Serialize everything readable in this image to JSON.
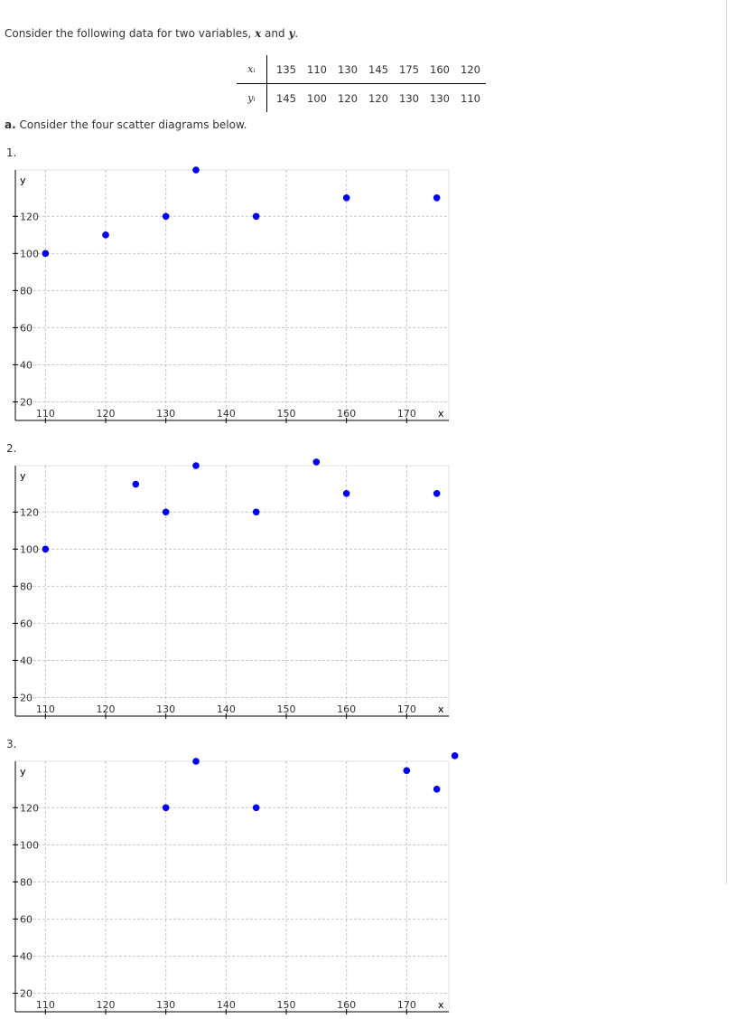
{
  "intro": {
    "text_before": "Consider the following data for two variables, ",
    "var_x": "x",
    "text_and": " and ",
    "var_y": "y",
    "text_end": "."
  },
  "table": {
    "x_label": "xᵢ",
    "y_label": "yᵢ",
    "x_values": [
      "135",
      "110",
      "130",
      "145",
      "175",
      "160",
      "120"
    ],
    "y_values": [
      "145",
      "100",
      "120",
      "120",
      "130",
      "130",
      "110"
    ]
  },
  "part_a": {
    "letter": "a.",
    "text": " Consider the four scatter diagrams below."
  },
  "chart_data": [
    {
      "number": "1.",
      "type": "scatter",
      "xlabel": "x",
      "ylabel": "y",
      "xlim": [
        105,
        177
      ],
      "ylim": [
        10,
        145
      ],
      "x_ticks": [
        "110",
        "120",
        "130",
        "140",
        "150",
        "160",
        "170"
      ],
      "y_ticks": [
        "20",
        "40",
        "60",
        "80",
        "100",
        "120"
      ],
      "grid": true,
      "points": [
        [
          110,
          100
        ],
        [
          120,
          110
        ],
        [
          130,
          120
        ],
        [
          135,
          145
        ],
        [
          145,
          120
        ],
        [
          160,
          130
        ],
        [
          175,
          130
        ]
      ]
    },
    {
      "number": "2.",
      "type": "scatter",
      "xlabel": "x",
      "ylabel": "y",
      "xlim": [
        105,
        177
      ],
      "ylim": [
        10,
        145
      ],
      "x_ticks": [
        "110",
        "120",
        "130",
        "140",
        "150",
        "160",
        "170"
      ],
      "y_ticks": [
        "20",
        "40",
        "60",
        "80",
        "100",
        "120"
      ],
      "grid": true,
      "points": [
        [
          110,
          100
        ],
        [
          125,
          135
        ],
        [
          130,
          120
        ],
        [
          135,
          145
        ],
        [
          145,
          120
        ],
        [
          155,
          147
        ],
        [
          160,
          130
        ],
        [
          175,
          130
        ]
      ]
    },
    {
      "number": "3.",
      "type": "scatter",
      "xlabel": "x",
      "ylabel": "y",
      "xlim": [
        105,
        177
      ],
      "ylim": [
        10,
        145
      ],
      "x_ticks": [
        "110",
        "120",
        "130",
        "140",
        "150",
        "160",
        "170"
      ],
      "y_ticks": [
        "20",
        "40",
        "60",
        "80",
        "100",
        "120"
      ],
      "grid": true,
      "points": [
        [
          130,
          120
        ],
        [
          135,
          145
        ],
        [
          145,
          120
        ],
        [
          170,
          140
        ],
        [
          175,
          130
        ],
        [
          178,
          148
        ]
      ]
    }
  ],
  "colors": {
    "point": "#0000ee",
    "grid": "#c8c8c8",
    "axis": "#000000"
  }
}
